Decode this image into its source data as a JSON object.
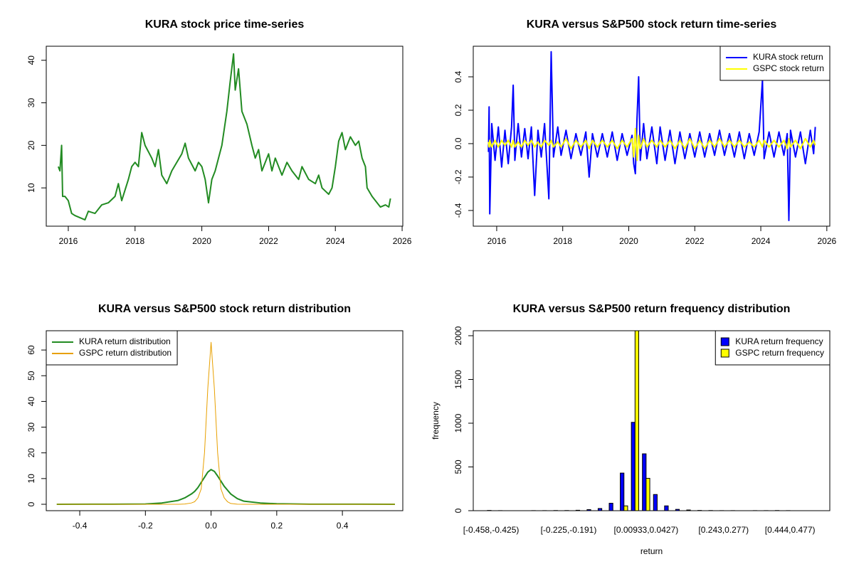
{
  "chart_data": [
    {
      "type": "line",
      "title": "KURA stock price time-series",
      "color": "#228b22",
      "x": [
        2015.7,
        2015.75,
        2015.8,
        2015.83,
        2015.9,
        2016.0,
        2016.1,
        2016.2,
        2016.35,
        2016.5,
        2016.6,
        2016.8,
        2017.0,
        2017.2,
        2017.4,
        2017.5,
        2017.6,
        2017.8,
        2017.9,
        2018.0,
        2018.1,
        2018.2,
        2018.3,
        2018.5,
        2018.6,
        2018.7,
        2018.8,
        2018.95,
        2019.1,
        2019.25,
        2019.4,
        2019.5,
        2019.6,
        2019.8,
        2019.9,
        2020.0,
        2020.1,
        2020.2,
        2020.3,
        2020.4,
        2020.5,
        2020.6,
        2020.75,
        2020.85,
        2020.95,
        2021.0,
        2021.1,
        2021.2,
        2021.35,
        2021.5,
        2021.6,
        2021.7,
        2021.8,
        2021.9,
        2022.0,
        2022.1,
        2022.2,
        2022.4,
        2022.55,
        2022.7,
        2022.9,
        2023.0,
        2023.2,
        2023.4,
        2023.5,
        2023.6,
        2023.8,
        2023.9,
        2024.0,
        2024.1,
        2024.2,
        2024.3,
        2024.45,
        2024.6,
        2024.7,
        2024.8,
        2024.9,
        2024.95,
        2025.1,
        2025.2,
        2025.35,
        2025.5,
        2025.6,
        2025.65
      ],
      "values": [
        15,
        14,
        20,
        8,
        8,
        7,
        4,
        3.5,
        3,
        2.5,
        4.5,
        4,
        6,
        6.5,
        8,
        11,
        7,
        12,
        15,
        16,
        15,
        23,
        20,
        17,
        15,
        19,
        13,
        11,
        14,
        16,
        18,
        20.5,
        17,
        14,
        16,
        15,
        12,
        6.5,
        12,
        14,
        17,
        20,
        28,
        35,
        41.5,
        33,
        38,
        28,
        25,
        20,
        17,
        19,
        14,
        16,
        18,
        14,
        17,
        13,
        16,
        14,
        12,
        15,
        12,
        11,
        13,
        10,
        8.5,
        10,
        15,
        21,
        23,
        19,
        22,
        20,
        21,
        17,
        15,
        10,
        8,
        7,
        5.5,
        6,
        5.5,
        7.5
      ],
      "xlim": [
        2015.34,
        2026.02
      ],
      "ylim": [
        1.0,
        43.3
      ],
      "xticks": [
        2016,
        2018,
        2020,
        2022,
        2024,
        2026
      ],
      "yticks": [
        10,
        20,
        30,
        40
      ]
    },
    {
      "type": "line",
      "title": "KURA versus S&P500 stock return time-series",
      "legend": "topright",
      "x": [
        2015.75,
        2015.77,
        2015.79,
        2015.85,
        2015.95,
        2016.05,
        2016.15,
        2016.25,
        2016.35,
        2016.45,
        2016.5,
        2016.55,
        2016.65,
        2016.75,
        2016.85,
        2016.95,
        2017.05,
        2017.15,
        2017.25,
        2017.35,
        2017.45,
        2017.58,
        2017.65,
        2017.72,
        2017.85,
        2017.95,
        2018.1,
        2018.25,
        2018.4,
        2018.55,
        2018.7,
        2018.8,
        2018.9,
        2019.05,
        2019.2,
        2019.35,
        2019.5,
        2019.65,
        2019.8,
        2019.95,
        2020.1,
        2020.15,
        2020.2,
        2020.25,
        2020.3,
        2020.35,
        2020.45,
        2020.55,
        2020.7,
        2020.85,
        2020.95,
        2021.1,
        2021.25,
        2021.4,
        2021.55,
        2021.7,
        2021.85,
        2022.0,
        2022.15,
        2022.3,
        2022.45,
        2022.6,
        2022.75,
        2022.9,
        2023.05,
        2023.2,
        2023.35,
        2023.5,
        2023.65,
        2023.8,
        2023.95,
        2024.05,
        2024.1,
        2024.25,
        2024.4,
        2024.55,
        2024.7,
        2024.8,
        2024.85,
        2024.9,
        2025.05,
        2025.2,
        2025.35,
        2025.5,
        2025.6,
        2025.65
      ],
      "series": [
        {
          "name": "KURA stock return",
          "color": "#0000ff",
          "values": [
            -0.05,
            0.22,
            -0.42,
            0.12,
            -0.1,
            0.1,
            -0.14,
            0.08,
            -0.12,
            0.1,
            0.35,
            -0.1,
            0.12,
            -0.08,
            0.09,
            -0.09,
            0.1,
            -0.31,
            0.08,
            -0.08,
            0.12,
            -0.33,
            0.55,
            -0.08,
            0.1,
            -0.07,
            0.08,
            -0.09,
            0.06,
            -0.07,
            0.07,
            -0.2,
            0.06,
            -0.08,
            0.06,
            -0.08,
            0.07,
            -0.1,
            0.06,
            -0.07,
            0.05,
            -0.12,
            -0.18,
            0.15,
            0.4,
            -0.1,
            0.12,
            -0.09,
            0.1,
            -0.12,
            0.1,
            -0.1,
            0.08,
            -0.12,
            0.07,
            -0.09,
            0.06,
            -0.08,
            0.07,
            -0.08,
            0.06,
            -0.07,
            0.08,
            -0.07,
            0.06,
            -0.08,
            0.07,
            -0.09,
            0.06,
            -0.07,
            0.07,
            0.38,
            -0.09,
            0.07,
            -0.08,
            0.07,
            -0.07,
            0.06,
            -0.46,
            0.08,
            -0.08,
            0.07,
            -0.12,
            0.08,
            -0.06,
            0.1
          ]
        },
        {
          "name": "GSPC stock return",
          "color": "#ffff00",
          "values": [
            0.01,
            -0.02,
            0.02,
            -0.02,
            0.02,
            -0.02,
            0.02,
            -0.01,
            0.02,
            -0.02,
            0.02,
            -0.02,
            0.01,
            -0.02,
            0.02,
            -0.01,
            0.02,
            -0.02,
            0.01,
            -0.02,
            0.02,
            -0.01,
            0.02,
            -0.02,
            0.01,
            -0.02,
            0.03,
            -0.03,
            0.02,
            -0.02,
            0.02,
            -0.03,
            0.02,
            -0.02,
            0.02,
            -0.02,
            0.02,
            -0.03,
            0.02,
            -0.02,
            0.03,
            -0.08,
            0.09,
            -0.1,
            0.05,
            -0.03,
            0.03,
            -0.02,
            0.02,
            -0.02,
            0.02,
            -0.02,
            0.02,
            -0.03,
            0.02,
            -0.03,
            0.03,
            -0.03,
            0.02,
            -0.03,
            0.02,
            -0.02,
            0.03,
            -0.02,
            0.02,
            -0.02,
            0.02,
            -0.02,
            0.01,
            -0.02,
            0.02,
            -0.02,
            0.02,
            -0.02,
            0.02,
            -0.02,
            0.02,
            -0.03,
            0.03,
            -0.02,
            0.02,
            -0.03,
            0.03,
            -0.02,
            0.02,
            -0.01
          ]
        }
      ],
      "xlim": [
        2015.29,
        2026.09
      ],
      "ylim": [
        -0.494,
        0.583
      ],
      "xticks": [
        2016,
        2018,
        2020,
        2022,
        2024,
        2026
      ],
      "yticks": [
        -0.4,
        -0.2,
        {
          "value": 0,
          "label": "0.0"
        },
        0.2,
        0.4
      ]
    },
    {
      "type": "line",
      "title": "KURA versus S&P500 stock return distribution",
      "legend": "topleft",
      "x": [
        -0.47,
        -0.3,
        -0.2,
        -0.15,
        -0.1,
        -0.08,
        -0.06,
        -0.05,
        -0.04,
        -0.03,
        -0.02,
        -0.01,
        0,
        0.01,
        0.02,
        0.03,
        0.04,
        0.05,
        0.06,
        0.08,
        0.1,
        0.15,
        0.2,
        0.3,
        0.56
      ],
      "series": [
        {
          "name": "KURA return distribution",
          "color": "#228b22",
          "values": [
            0,
            0.05,
            0.1,
            0.5,
            1.5,
            2.5,
            4,
            5,
            6.5,
            8.5,
            10.5,
            12.5,
            13.5,
            12.8,
            11,
            9,
            7,
            5.5,
            4,
            2.2,
            1.2,
            0.5,
            0.2,
            0.05,
            0
          ]
        },
        {
          "name": "GSPC return distribution",
          "color": "#e8a000",
          "values": [
            0,
            0,
            0,
            0,
            0,
            0.1,
            0.5,
            1,
            2.5,
            6,
            20,
            45,
            63,
            45,
            20,
            6,
            2.5,
            1,
            0.3,
            0.05,
            0,
            0,
            0,
            0,
            0
          ]
        }
      ],
      "xlim": [
        -0.502,
        0.584
      ],
      "ylim": [
        -2.49,
        67.5
      ],
      "xticks": [
        -0.4,
        -0.2,
        {
          "value": 0,
          "label": "0.0"
        },
        0.2,
        0.4
      ],
      "yticks": [
        0,
        10,
        20,
        30,
        40,
        50,
        60
      ]
    },
    {
      "type": "bar",
      "title": "KURA versus S&P500 return frequency distribution",
      "legend": "topright",
      "x_label": "return",
      "y_label": "frequency",
      "categories": [
        "[-0.458,-0.425)",
        null,
        null,
        null,
        null,
        null,
        null,
        "[-0.225,-0.191)",
        null,
        null,
        null,
        null,
        null,
        null,
        "[0.00933,0.0427)",
        null,
        null,
        null,
        null,
        null,
        null,
        "[0.243,0.277)",
        null,
        null,
        null,
        null,
        null,
        "[0.444,0.477)"
      ],
      "series": [
        {
          "name": "KURA return frequency",
          "color": "#0000ff",
          "values": [
            3,
            1,
            0,
            0,
            1,
            1,
            2,
            2,
            5,
            12,
            25,
            85,
            430,
            1010,
            650,
            185,
            55,
            15,
            8,
            3,
            2,
            1,
            1,
            0,
            1,
            1,
            2,
            1
          ]
        },
        {
          "name": "GSPC return frequency",
          "color": "#ffff00",
          "values": [
            0,
            0,
            0,
            0,
            0,
            0,
            0,
            0,
            0,
            0,
            0,
            0,
            55,
            2080,
            370,
            0,
            0,
            0,
            0,
            0,
            0,
            0,
            0,
            0,
            0,
            0,
            0,
            0
          ]
        }
      ],
      "ylim": [
        0,
        2057
      ],
      "yticks": [
        0,
        500,
        1000,
        1500,
        2000
      ]
    }
  ]
}
